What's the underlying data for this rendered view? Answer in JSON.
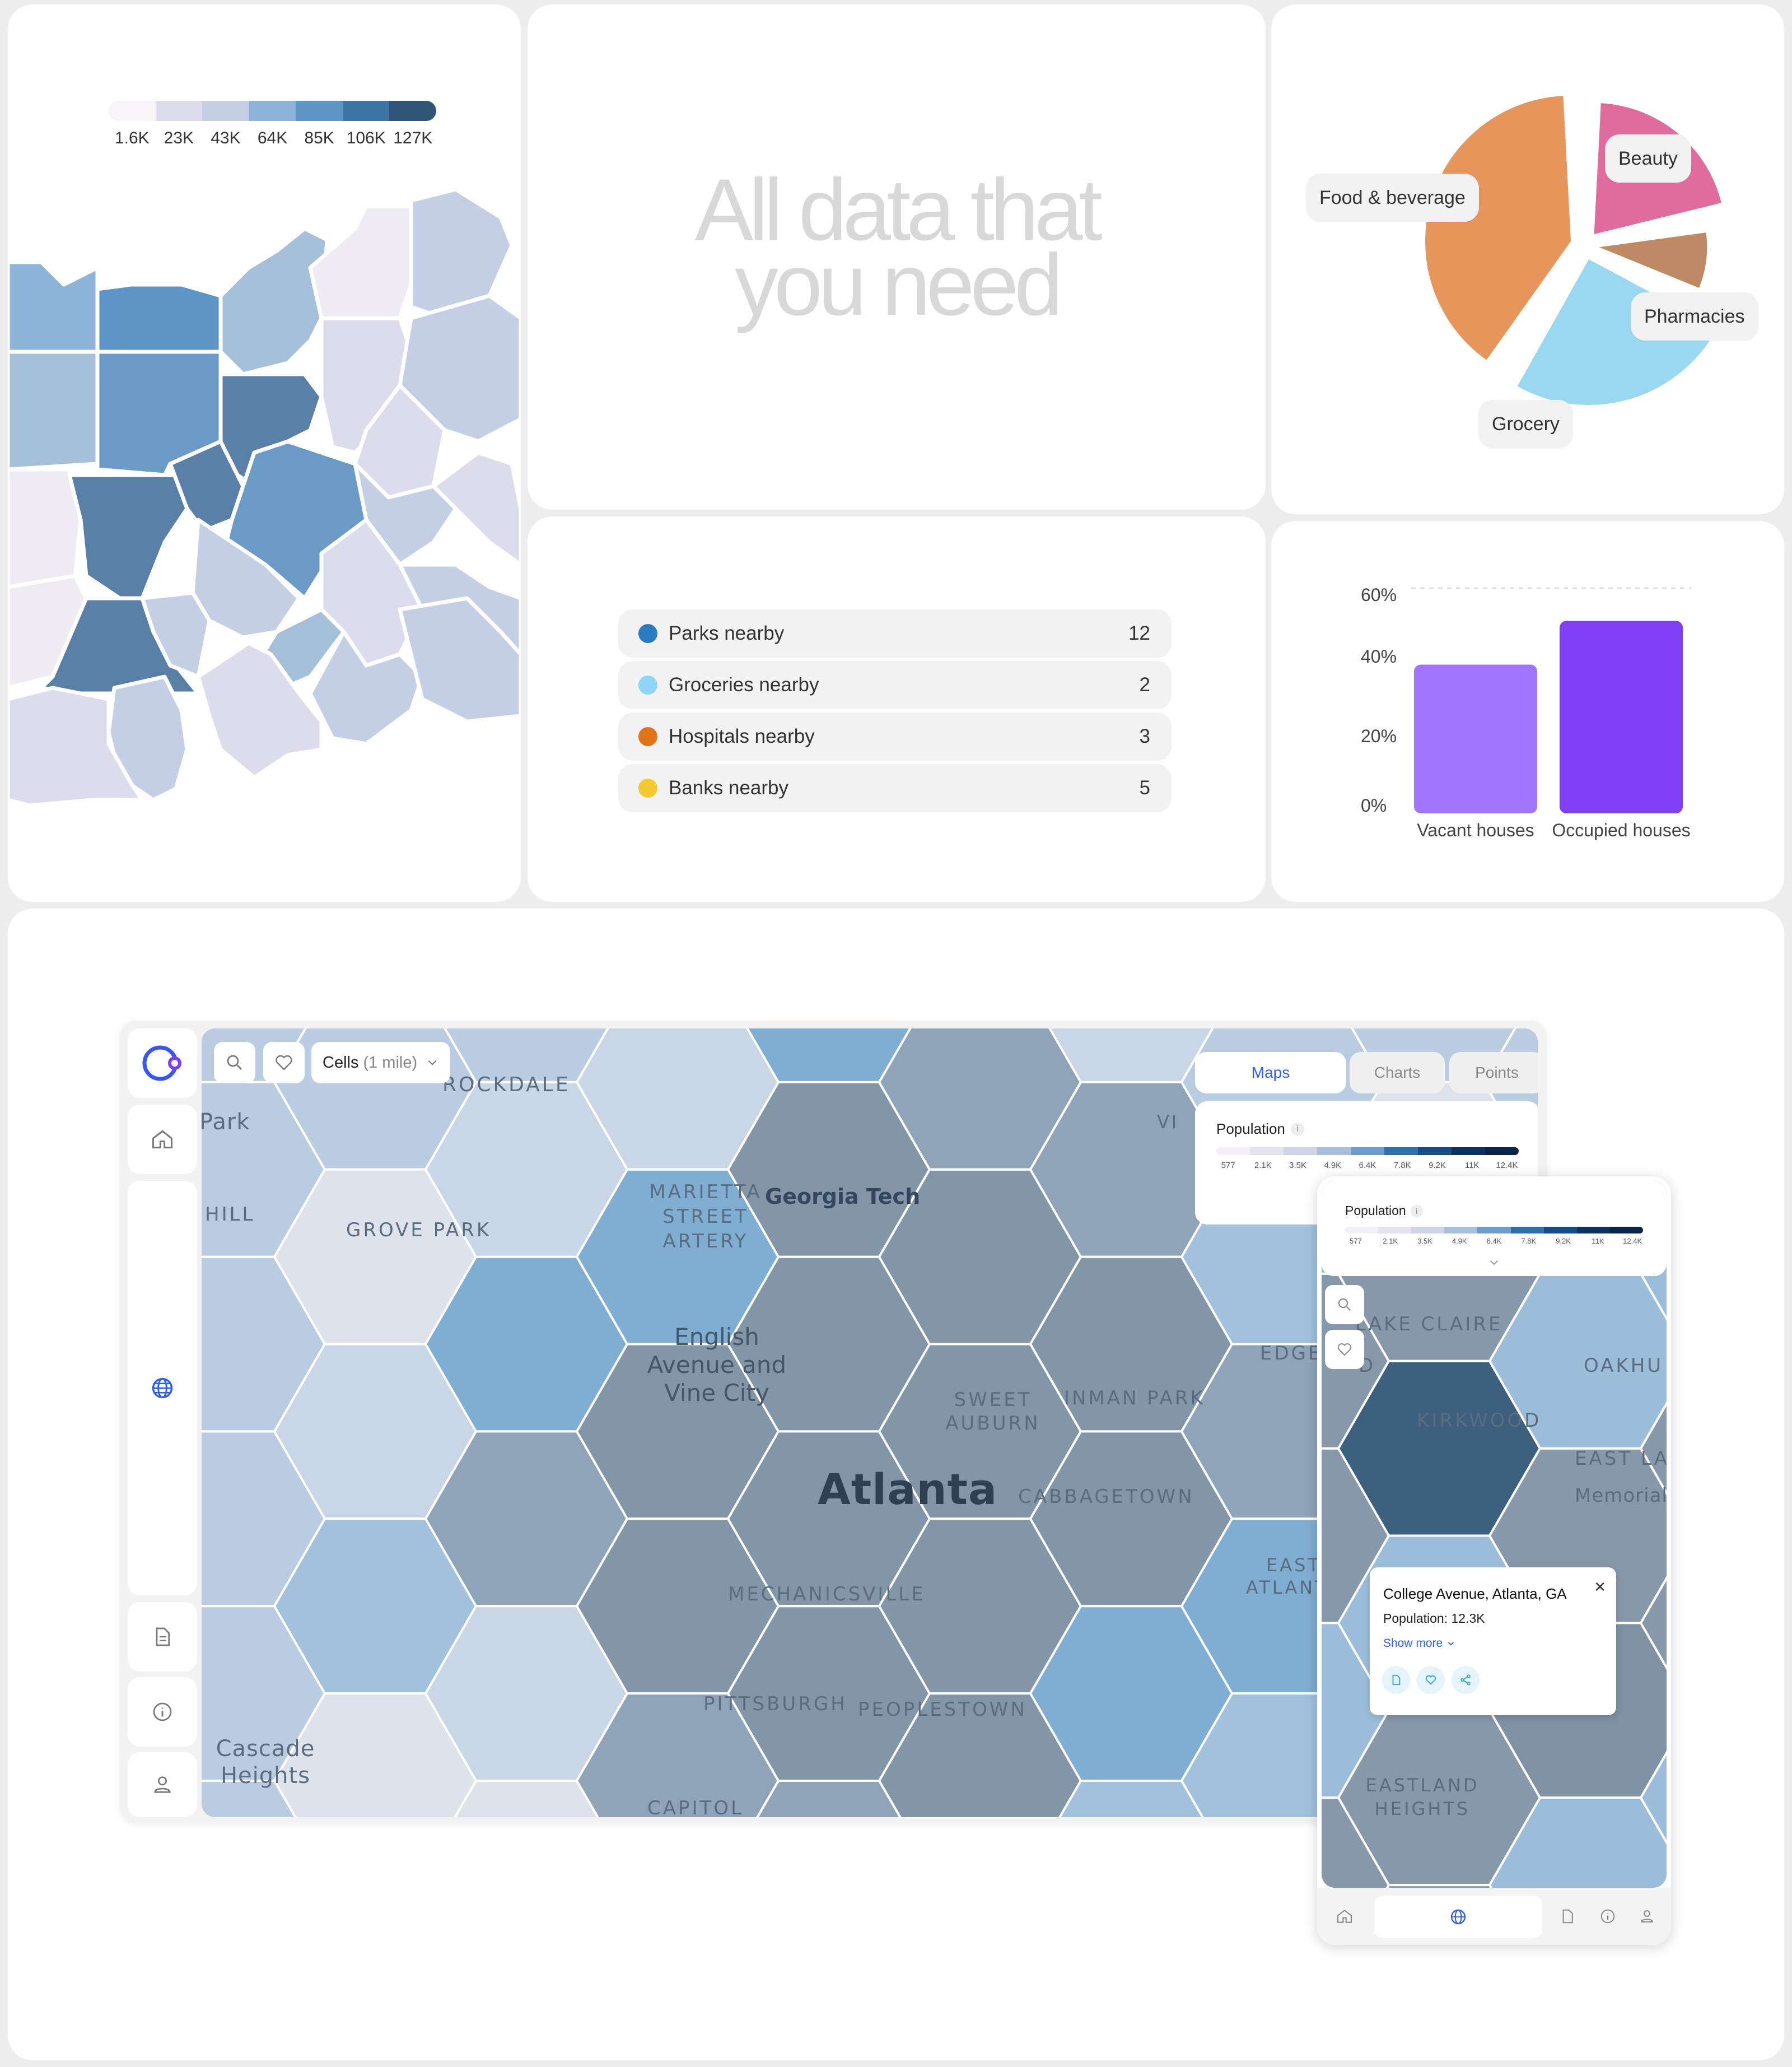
{
  "choropleth": {
    "legend_colors": [
      "#f7f3f8",
      "#dcdcec",
      "#c4cfe5",
      "#8db3d9",
      "#5d95c8",
      "#3f74a6",
      "#2f5477"
    ],
    "legend_labels": [
      "1.6K",
      "23K",
      "43K",
      "64K",
      "85K",
      "106K",
      "127K"
    ]
  },
  "headline": {
    "line1": "All data that",
    "line2": "you need"
  },
  "pie": {
    "chart_data": {
      "type": "pie",
      "slices": [
        {
          "label": "Beauty",
          "value": 22,
          "color": "#df6c9d"
        },
        {
          "label": "Pharmacies",
          "value": 10,
          "color": "#be8a63"
        },
        {
          "label": "Grocery",
          "value": 27,
          "color": "#9ad7f0"
        },
        {
          "label": "Food & beverage",
          "value": 41,
          "color": "#e6955d"
        }
      ]
    }
  },
  "nearby": [
    {
      "label": "Parks nearby",
      "count": "12",
      "color": "#2a7bc0"
    },
    {
      "label": "Groceries nearby",
      "count": "2",
      "color": "#8dd6f7"
    },
    {
      "label": "Hospitals nearby",
      "count": "3",
      "color": "#e07318"
    },
    {
      "label": "Banks nearby",
      "count": "5",
      "color": "#f5c932"
    }
  ],
  "chart_data": {
    "type": "bar",
    "categories": [
      "Vacant houses",
      "Occupied houses"
    ],
    "values": [
      39,
      51
    ],
    "colors": [
      "#a175fb",
      "#7f3ff5"
    ],
    "yticks": [
      "0%",
      "20%",
      "40%",
      "60%"
    ],
    "ylim": [
      0,
      60
    ],
    "grid": "dashed line at 60%"
  },
  "app": {
    "search_icon": "search-icon",
    "favorite_icon": "heart-icon",
    "cells_label": "Cells",
    "cells_unit": "(1 mile)",
    "tabs": [
      "Maps",
      "Charts",
      "Points"
    ],
    "legend_title": "Population",
    "legend_colors": [
      "#f4f0f7",
      "#e3e2ee",
      "#cfd3e6",
      "#a9c0dc",
      "#6f9ccb",
      "#2f6fa8",
      "#174d85",
      "#0d3260",
      "#0a2547"
    ],
    "legend_ticks": [
      "577",
      "2.1K",
      "3.5K",
      "4.9K",
      "6.4K",
      "7.8K",
      "9.2K",
      "11K",
      "12.4K"
    ],
    "map_labels": {
      "rockdale": "ROCKDALE",
      "park": "Park",
      "hill": "HILL",
      "grove_park": "GROVE PARK",
      "marietta": "MARIETTA STREET ARTERY",
      "georgia_tech": "Georgia Tech",
      "english_ave": "English Avenue and Vine City",
      "sweet_auburn": "SWEET AUBURN",
      "inman_park": "INMAN PARK",
      "atlanta": "Atlanta",
      "cabbagetown": "CABBAGETOWN",
      "edge": "EDGE",
      "vi": "VI",
      "east_atlanta": "EAST ATLANTA",
      "mechanicsville": "MECHANICSVILLE",
      "pittsburgh": "PITTSBURGH",
      "peoplestown": "PEOPLESTOWN",
      "cascade": "Cascade Heights",
      "capitol": "CAPITOL"
    }
  },
  "phone": {
    "legend_title": "Population",
    "legend_ticks": [
      "577",
      "2.1K",
      "3.5K",
      "4.9K",
      "6.4K",
      "7.8K",
      "9.2K",
      "11K",
      "12.4K"
    ],
    "map_labels": {
      "lake_claire": "LAKE CLAIRE",
      "oakhu": "OAKHU",
      "kirkwood": "KIRKWOOD",
      "east_la": "EAST LA",
      "memorial": "Memorial",
      "eastland": "EASTLAND HEIGHTS",
      "d": "D"
    },
    "popup": {
      "address": "College Avenue, Atlanta, GA",
      "population": "Population: 12.3K",
      "show_more": "Show more"
    }
  }
}
